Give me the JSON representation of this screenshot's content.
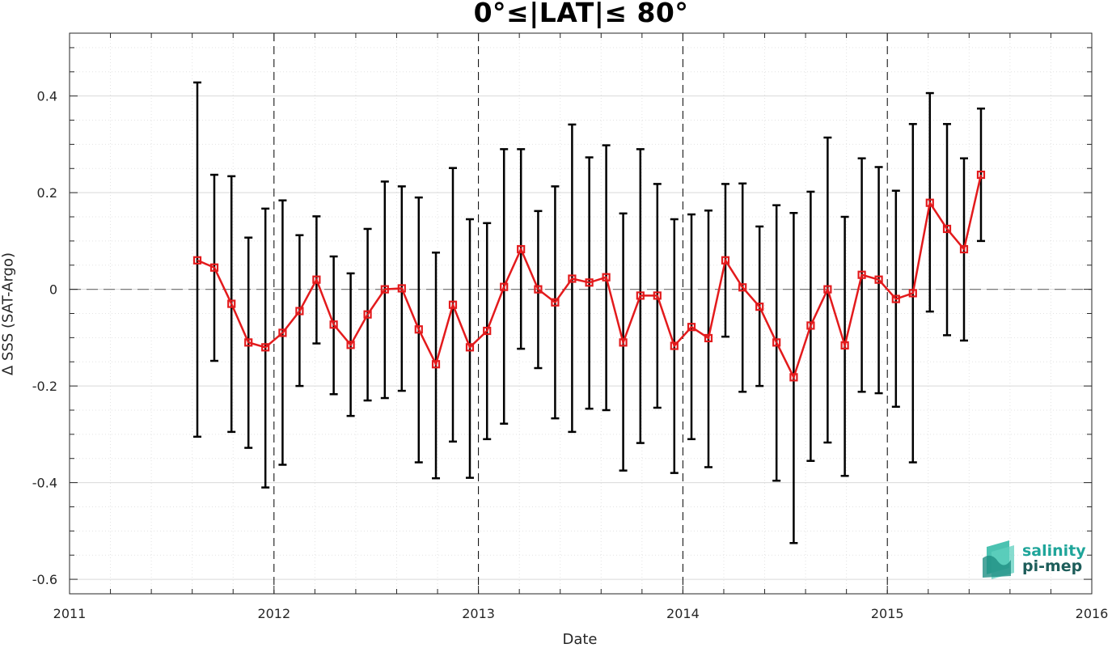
{
  "chart_data": {
    "type": "line",
    "title": "0°≤|LAT|≤ 80°",
    "xlabel": "Date",
    "ylabel": "Δ SSS (SAT-Argo)",
    "xlim": [
      2011,
      2016
    ],
    "ylim": [
      -0.63,
      0.53
    ],
    "xticks": [
      "2011",
      "2012",
      "2013",
      "2014",
      "2015",
      "2016"
    ],
    "yticks": [
      "-0.6",
      "-0.4",
      "-0.2",
      "0",
      "0.2",
      "0.4"
    ],
    "grid": true,
    "line_color": "#e31a1c",
    "errorbar_color": "#000000",
    "series": [
      {
        "x": [
          2011.625,
          2011.708,
          2011.792,
          2011.875,
          2011.958,
          2012.042,
          2012.125,
          2012.208,
          2012.292,
          2012.375,
          2012.458,
          2012.542,
          2012.625,
          2012.708,
          2012.792,
          2012.875,
          2012.958,
          2013.042,
          2013.125,
          2013.208,
          2013.292,
          2013.375,
          2013.458,
          2013.542,
          2013.625,
          2013.708,
          2013.792,
          2013.875,
          2013.958,
          2014.042,
          2014.125,
          2014.208,
          2014.292,
          2014.375,
          2014.458,
          2014.542,
          2014.625,
          2014.708,
          2014.792,
          2014.875,
          2014.958,
          2015.042,
          2015.125,
          2015.208,
          2015.292,
          2015.375,
          2015.458
        ],
        "y": [
          0.06,
          0.045,
          -0.03,
          -0.11,
          -0.12,
          -0.09,
          -0.045,
          0.02,
          -0.073,
          -0.115,
          -0.052,
          0.0,
          0.002,
          -0.083,
          -0.155,
          -0.032,
          -0.12,
          -0.086,
          0.005,
          0.083,
          0.0,
          -0.027,
          0.022,
          0.014,
          0.025,
          -0.11,
          -0.013,
          -0.013,
          -0.117,
          -0.078,
          -0.101,
          0.06,
          0.004,
          -0.036,
          -0.11,
          -0.182,
          -0.075,
          0.0,
          -0.116,
          0.03,
          0.02,
          -0.02,
          -0.008,
          0.179,
          0.125,
          0.083,
          0.237
        ],
        "y_upper": [
          0.428,
          0.237,
          0.234,
          0.107,
          0.167,
          0.184,
          0.112,
          0.151,
          0.068,
          0.033,
          0.125,
          0.223,
          0.213,
          0.19,
          0.076,
          0.251,
          0.145,
          0.137,
          0.29,
          0.29,
          0.162,
          0.213,
          0.341,
          0.273,
          0.298,
          0.157,
          0.29,
          0.218,
          0.145,
          0.155,
          0.163,
          0.218,
          0.219,
          0.13,
          0.174,
          0.158,
          0.202,
          0.314,
          0.15,
          0.271,
          0.253,
          0.204,
          0.342,
          0.406,
          0.342,
          0.271,
          0.374
        ],
        "y_lower": [
          -0.305,
          -0.148,
          -0.295,
          -0.328,
          -0.41,
          -0.363,
          -0.2,
          -0.112,
          -0.217,
          -0.262,
          -0.23,
          -0.225,
          -0.21,
          -0.358,
          -0.391,
          -0.315,
          -0.39,
          -0.31,
          -0.278,
          -0.123,
          -0.163,
          -0.267,
          -0.295,
          -0.247,
          -0.25,
          -0.375,
          -0.318,
          -0.245,
          -0.38,
          -0.31,
          -0.368,
          -0.098,
          -0.212,
          -0.2,
          -0.396,
          -0.525,
          -0.355,
          -0.317,
          -0.386,
          -0.212,
          -0.215,
          -0.243,
          -0.358,
          -0.046,
          -0.095,
          -0.106,
          0.1
        ]
      }
    ]
  },
  "logo": {
    "line1": "salinity",
    "line2": "pi-mep"
  }
}
